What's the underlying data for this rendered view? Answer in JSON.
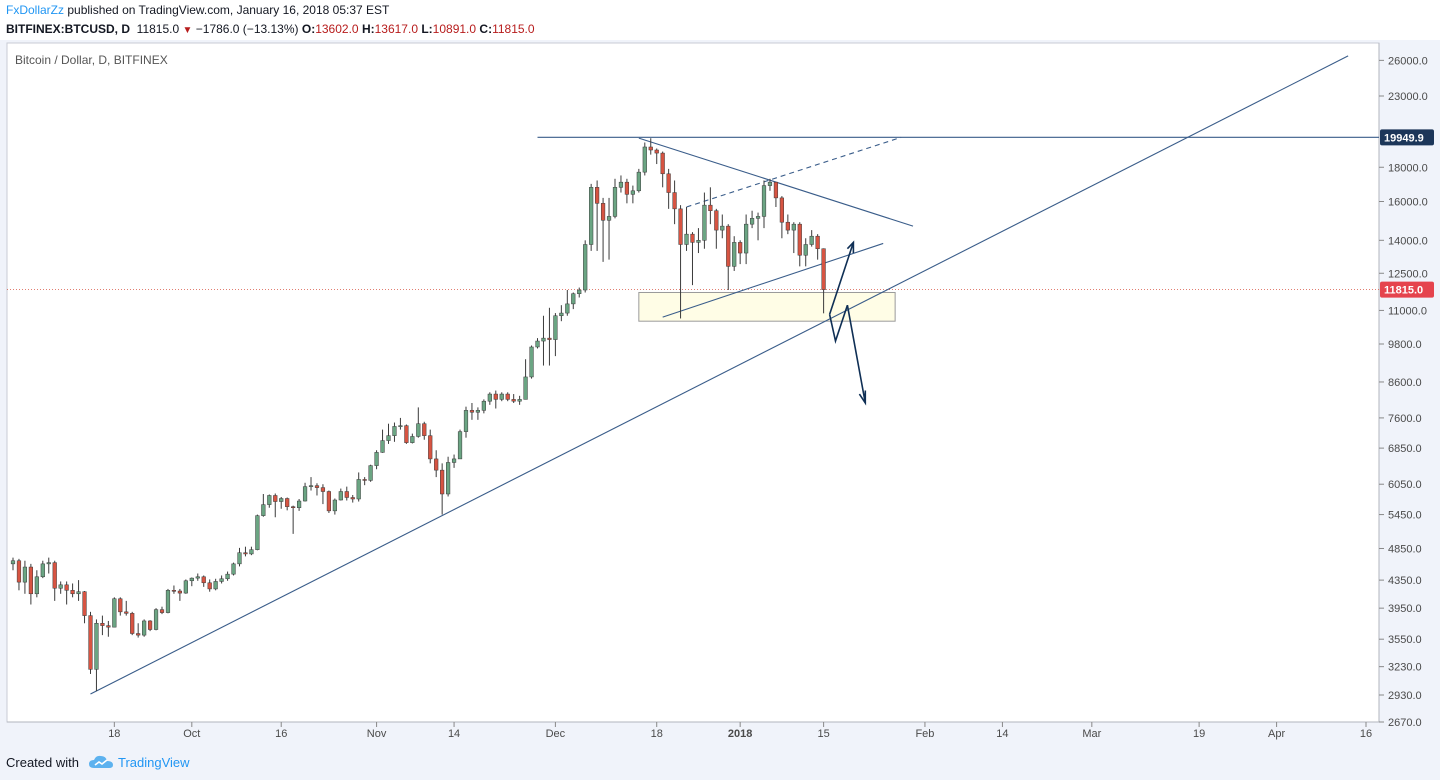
{
  "header": {
    "author": "FxDollarZz",
    "published_text": "published on TradingView.com, January 16, 2018 05:37 EST",
    "symbol": "BITFINEX:BTCUSD, D",
    "last": "11815.0",
    "change": "−1786.0 (−13.13%)",
    "o_label": "O:",
    "o_value": "13602.0",
    "h_label": "H:",
    "h_value": "13617.0",
    "l_label": "L:",
    "l_value": "10891.0",
    "c_label": "C:",
    "c_value": "11815.0"
  },
  "footer": {
    "created_with": "Created with",
    "brand": "TradingView"
  },
  "colors": {
    "up": "#6ba583",
    "down": "#d75442",
    "drawing": "#3a5d8a",
    "arrow": "#0f2f55",
    "highlight_fill": "#fffde6",
    "last_price_badge": "#e5434d",
    "level_badge": "#1c3659"
  },
  "chart_data": {
    "type": "candlestick",
    "title": "Bitcoin / Dollar, D, BITFINEX",
    "price_scale": "log",
    "ylim": [
      2670,
      27600
    ],
    "y_ticks": [
      "26000.0",
      "23000.0",
      "18000.0",
      "16000.0",
      "14000.0",
      "12500.0",
      "11000.0",
      "9800.0",
      "8600.0",
      "7600.0",
      "6850.0",
      "6050.0",
      "5450.0",
      "4850.0",
      "4350.0",
      "3950.0",
      "3550.0",
      "3230.0",
      "2930.0",
      "2670.0"
    ],
    "x_labels": [
      "18",
      "Oct",
      "16",
      "Nov",
      "14",
      "Dec",
      "18",
      "2018",
      "15",
      "Feb",
      "14",
      "Mar",
      "19",
      "Apr",
      "16"
    ],
    "x_range": [
      "2017-09-01",
      "2018-04-16"
    ],
    "last_price_label": "11815.0",
    "level_label": "19949.9",
    "candles": [
      {
        "date": "2017-09-01",
        "o": 4600,
        "h": 4700,
        "l": 4500,
        "c": 4650
      },
      {
        "date": "2017-09-02",
        "o": 4650,
        "h": 4680,
        "l": 4200,
        "c": 4320
      },
      {
        "date": "2017-09-03",
        "o": 4320,
        "h": 4650,
        "l": 4150,
        "c": 4550
      },
      {
        "date": "2017-09-04",
        "o": 4550,
        "h": 4600,
        "l": 4000,
        "c": 4150
      },
      {
        "date": "2017-09-05",
        "o": 4150,
        "h": 4500,
        "l": 4100,
        "c": 4400
      },
      {
        "date": "2017-09-06",
        "o": 4400,
        "h": 4650,
        "l": 4380,
        "c": 4600
      },
      {
        "date": "2017-09-07",
        "o": 4600,
        "h": 4700,
        "l": 4450,
        "c": 4620
      },
      {
        "date": "2017-09-08",
        "o": 4620,
        "h": 4650,
        "l": 4050,
        "c": 4230
      },
      {
        "date": "2017-09-09",
        "o": 4230,
        "h": 4330,
        "l": 4150,
        "c": 4280
      },
      {
        "date": "2017-09-10",
        "o": 4280,
        "h": 4330,
        "l": 4000,
        "c": 4200
      },
      {
        "date": "2017-09-11",
        "o": 4200,
        "h": 4300,
        "l": 4100,
        "c": 4150
      },
      {
        "date": "2017-09-12",
        "o": 4150,
        "h": 4350,
        "l": 4050,
        "c": 4180
      },
      {
        "date": "2017-09-13",
        "o": 4180,
        "h": 4190,
        "l": 3750,
        "c": 3850
      },
      {
        "date": "2017-09-14",
        "o": 3850,
        "h": 3900,
        "l": 3150,
        "c": 3200
      },
      {
        "date": "2017-09-15",
        "o": 3200,
        "h": 3800,
        "l": 2970,
        "c": 3750
      },
      {
        "date": "2017-09-16",
        "o": 3750,
        "h": 3850,
        "l": 3600,
        "c": 3720
      },
      {
        "date": "2017-09-17",
        "o": 3720,
        "h": 3780,
        "l": 3580,
        "c": 3700
      },
      {
        "date": "2017-09-18",
        "o": 3700,
        "h": 4100,
        "l": 3700,
        "c": 4080
      },
      {
        "date": "2017-09-19",
        "o": 4080,
        "h": 4100,
        "l": 3850,
        "c": 3900
      },
      {
        "date": "2017-09-20",
        "o": 3900,
        "h": 4050,
        "l": 3850,
        "c": 3880
      },
      {
        "date": "2017-09-21",
        "o": 3880,
        "h": 3900,
        "l": 3600,
        "c": 3620
      },
      {
        "date": "2017-09-22",
        "o": 3620,
        "h": 3750,
        "l": 3570,
        "c": 3600
      },
      {
        "date": "2017-09-23",
        "o": 3600,
        "h": 3800,
        "l": 3580,
        "c": 3780
      },
      {
        "date": "2017-09-24",
        "o": 3780,
        "h": 3790,
        "l": 3650,
        "c": 3670
      },
      {
        "date": "2017-09-25",
        "o": 3670,
        "h": 3950,
        "l": 3660,
        "c": 3930
      },
      {
        "date": "2017-09-26",
        "o": 3930,
        "h": 3970,
        "l": 3870,
        "c": 3890
      },
      {
        "date": "2017-09-27",
        "o": 3890,
        "h": 4220,
        "l": 3880,
        "c": 4200
      },
      {
        "date": "2017-09-28",
        "o": 4200,
        "h": 4270,
        "l": 4150,
        "c": 4190
      },
      {
        "date": "2017-09-29",
        "o": 4190,
        "h": 4220,
        "l": 4050,
        "c": 4160
      },
      {
        "date": "2017-09-30",
        "o": 4160,
        "h": 4360,
        "l": 4150,
        "c": 4340
      },
      {
        "date": "2017-10-01",
        "o": 4340,
        "h": 4390,
        "l": 4260,
        "c": 4380
      },
      {
        "date": "2017-10-02",
        "o": 4380,
        "h": 4450,
        "l": 4340,
        "c": 4400
      },
      {
        "date": "2017-10-03",
        "o": 4400,
        "h": 4420,
        "l": 4250,
        "c": 4310
      },
      {
        "date": "2017-10-04",
        "o": 4310,
        "h": 4360,
        "l": 4180,
        "c": 4220
      },
      {
        "date": "2017-10-05",
        "o": 4220,
        "h": 4370,
        "l": 4200,
        "c": 4330
      },
      {
        "date": "2017-10-06",
        "o": 4330,
        "h": 4420,
        "l": 4300,
        "c": 4370
      },
      {
        "date": "2017-10-07",
        "o": 4370,
        "h": 4480,
        "l": 4340,
        "c": 4440
      },
      {
        "date": "2017-10-08",
        "o": 4440,
        "h": 4620,
        "l": 4420,
        "c": 4600
      },
      {
        "date": "2017-10-09",
        "o": 4600,
        "h": 4860,
        "l": 4560,
        "c": 4780
      },
      {
        "date": "2017-10-10",
        "o": 4780,
        "h": 4880,
        "l": 4720,
        "c": 4760
      },
      {
        "date": "2017-10-11",
        "o": 4760,
        "h": 4880,
        "l": 4740,
        "c": 4830
      },
      {
        "date": "2017-10-12",
        "o": 4830,
        "h": 5450,
        "l": 4820,
        "c": 5430
      },
      {
        "date": "2017-10-13",
        "o": 5430,
        "h": 5850,
        "l": 5410,
        "c": 5640
      },
      {
        "date": "2017-10-14",
        "o": 5640,
        "h": 5840,
        "l": 5580,
        "c": 5820
      },
      {
        "date": "2017-10-15",
        "o": 5820,
        "h": 5860,
        "l": 5400,
        "c": 5700
      },
      {
        "date": "2017-10-16",
        "o": 5700,
        "h": 5790,
        "l": 5560,
        "c": 5760
      },
      {
        "date": "2017-10-17",
        "o": 5760,
        "h": 5780,
        "l": 5530,
        "c": 5600
      },
      {
        "date": "2017-10-18",
        "o": 5600,
        "h": 5620,
        "l": 5100,
        "c": 5580
      },
      {
        "date": "2017-10-19",
        "o": 5580,
        "h": 5750,
        "l": 5520,
        "c": 5710
      },
      {
        "date": "2017-10-20",
        "o": 5710,
        "h": 6080,
        "l": 5700,
        "c": 6000
      },
      {
        "date": "2017-10-21",
        "o": 6000,
        "h": 6200,
        "l": 5920,
        "c": 6020
      },
      {
        "date": "2017-10-22",
        "o": 6020,
        "h": 6070,
        "l": 5820,
        "c": 5980
      },
      {
        "date": "2017-10-23",
        "o": 5980,
        "h": 6050,
        "l": 5650,
        "c": 5900
      },
      {
        "date": "2017-10-24",
        "o": 5900,
        "h": 5920,
        "l": 5480,
        "c": 5520
      },
      {
        "date": "2017-10-25",
        "o": 5520,
        "h": 5760,
        "l": 5450,
        "c": 5730
      },
      {
        "date": "2017-10-26",
        "o": 5730,
        "h": 5960,
        "l": 5720,
        "c": 5900
      },
      {
        "date": "2017-10-27",
        "o": 5900,
        "h": 6000,
        "l": 5720,
        "c": 5780
      },
      {
        "date": "2017-10-28",
        "o": 5780,
        "h": 5830,
        "l": 5680,
        "c": 5750
      },
      {
        "date": "2017-10-29",
        "o": 5750,
        "h": 6300,
        "l": 5700,
        "c": 6150
      },
      {
        "date": "2017-10-30",
        "o": 6150,
        "h": 6200,
        "l": 6030,
        "c": 6130
      },
      {
        "date": "2017-10-31",
        "o": 6130,
        "h": 6470,
        "l": 6100,
        "c": 6450
      },
      {
        "date": "2017-11-01",
        "o": 6450,
        "h": 6800,
        "l": 6370,
        "c": 6750
      },
      {
        "date": "2017-11-02",
        "o": 6750,
        "h": 7300,
        "l": 6740,
        "c": 7030
      },
      {
        "date": "2017-11-03",
        "o": 7030,
        "h": 7450,
        "l": 6950,
        "c": 7150
      },
      {
        "date": "2017-11-04",
        "o": 7150,
        "h": 7480,
        "l": 7000,
        "c": 7380
      },
      {
        "date": "2017-11-05",
        "o": 7380,
        "h": 7600,
        "l": 7300,
        "c": 7400
      },
      {
        "date": "2017-11-06",
        "o": 7400,
        "h": 7430,
        "l": 6950,
        "c": 6980
      },
      {
        "date": "2017-11-07",
        "o": 6980,
        "h": 7200,
        "l": 6960,
        "c": 7130
      },
      {
        "date": "2017-11-08",
        "o": 7130,
        "h": 7880,
        "l": 7100,
        "c": 7450
      },
      {
        "date": "2017-11-09",
        "o": 7450,
        "h": 7500,
        "l": 7050,
        "c": 7150
      },
      {
        "date": "2017-11-10",
        "o": 7150,
        "h": 7300,
        "l": 6500,
        "c": 6600
      },
      {
        "date": "2017-11-11",
        "o": 6600,
        "h": 6800,
        "l": 6200,
        "c": 6350
      },
      {
        "date": "2017-11-12",
        "o": 6350,
        "h": 6500,
        "l": 5450,
        "c": 5850
      },
      {
        "date": "2017-11-13",
        "o": 5850,
        "h": 6650,
        "l": 5800,
        "c": 6520
      },
      {
        "date": "2017-11-14",
        "o": 6520,
        "h": 6700,
        "l": 6400,
        "c": 6600
      },
      {
        "date": "2017-11-15",
        "o": 6600,
        "h": 7300,
        "l": 6600,
        "c": 7250
      },
      {
        "date": "2017-11-16",
        "o": 7250,
        "h": 7900,
        "l": 7100,
        "c": 7800
      },
      {
        "date": "2017-11-17",
        "o": 7800,
        "h": 8000,
        "l": 7550,
        "c": 7750
      },
      {
        "date": "2017-11-18",
        "o": 7750,
        "h": 7880,
        "l": 7550,
        "c": 7800
      },
      {
        "date": "2017-11-19",
        "o": 7800,
        "h": 8100,
        "l": 7720,
        "c": 8050
      },
      {
        "date": "2017-11-20",
        "o": 8050,
        "h": 8300,
        "l": 7950,
        "c": 8250
      },
      {
        "date": "2017-11-21",
        "o": 8250,
        "h": 8350,
        "l": 7850,
        "c": 8100
      },
      {
        "date": "2017-11-22",
        "o": 8100,
        "h": 8300,
        "l": 8050,
        "c": 8250
      },
      {
        "date": "2017-11-23",
        "o": 8250,
        "h": 8300,
        "l": 8050,
        "c": 8100
      },
      {
        "date": "2017-11-24",
        "o": 8100,
        "h": 8250,
        "l": 8000,
        "c": 8050
      },
      {
        "date": "2017-11-25",
        "o": 8050,
        "h": 8200,
        "l": 7950,
        "c": 8100
      },
      {
        "date": "2017-11-26",
        "o": 8100,
        "h": 9300,
        "l": 8100,
        "c": 8750
      },
      {
        "date": "2017-11-27",
        "o": 8750,
        "h": 9750,
        "l": 8700,
        "c": 9700
      },
      {
        "date": "2017-11-28",
        "o": 9700,
        "h": 10000,
        "l": 9650,
        "c": 9900
      },
      {
        "date": "2017-11-29",
        "o": 9900,
        "h": 10800,
        "l": 9100,
        "c": 10000
      },
      {
        "date": "2017-11-30",
        "o": 10000,
        "h": 11100,
        "l": 9100,
        "c": 9950
      },
      {
        "date": "2017-12-01",
        "o": 9950,
        "h": 10900,
        "l": 9400,
        "c": 10800
      },
      {
        "date": "2017-12-02",
        "o": 10800,
        "h": 11200,
        "l": 10600,
        "c": 10900
      },
      {
        "date": "2017-12-03",
        "o": 10900,
        "h": 11800,
        "l": 10800,
        "c": 11250
      },
      {
        "date": "2017-12-04",
        "o": 11250,
        "h": 11700,
        "l": 11050,
        "c": 11650
      },
      {
        "date": "2017-12-05",
        "o": 11650,
        "h": 11900,
        "l": 11500,
        "c": 11800
      },
      {
        "date": "2017-12-06",
        "o": 11800,
        "h": 14000,
        "l": 11700,
        "c": 13800
      },
      {
        "date": "2017-12-07",
        "o": 13800,
        "h": 17000,
        "l": 13500,
        "c": 16800
      },
      {
        "date": "2017-12-08",
        "o": 16800,
        "h": 17200,
        "l": 13500,
        "c": 15900
      },
      {
        "date": "2017-12-09",
        "o": 15900,
        "h": 16200,
        "l": 13000,
        "c": 15000
      },
      {
        "date": "2017-12-10",
        "o": 15000,
        "h": 16200,
        "l": 13100,
        "c": 15200
      },
      {
        "date": "2017-12-11",
        "o": 15200,
        "h": 17300,
        "l": 15100,
        "c": 16800
      },
      {
        "date": "2017-12-12",
        "o": 16800,
        "h": 17500,
        "l": 16500,
        "c": 17100
      },
      {
        "date": "2017-12-13",
        "o": 17100,
        "h": 17300,
        "l": 15900,
        "c": 16400
      },
      {
        "date": "2017-12-14",
        "o": 16400,
        "h": 16900,
        "l": 15900,
        "c": 16600
      },
      {
        "date": "2017-12-15",
        "o": 16600,
        "h": 17900,
        "l": 16500,
        "c": 17700
      },
      {
        "date": "2017-12-16",
        "o": 17700,
        "h": 19600,
        "l": 17500,
        "c": 19300
      },
      {
        "date": "2017-12-17",
        "o": 19300,
        "h": 19891,
        "l": 18800,
        "c": 19100
      },
      {
        "date": "2017-12-18",
        "o": 19100,
        "h": 19200,
        "l": 18200,
        "c": 18900
      },
      {
        "date": "2017-12-19",
        "o": 18900,
        "h": 19000,
        "l": 16800,
        "c": 17600
      },
      {
        "date": "2017-12-20",
        "o": 17600,
        "h": 17900,
        "l": 15600,
        "c": 16500
      },
      {
        "date": "2017-12-21",
        "o": 16500,
        "h": 17200,
        "l": 14800,
        "c": 15600
      },
      {
        "date": "2017-12-22",
        "o": 15600,
        "h": 15800,
        "l": 10700,
        "c": 13800
      },
      {
        "date": "2017-12-23",
        "o": 13800,
        "h": 15700,
        "l": 13500,
        "c": 14300
      },
      {
        "date": "2017-12-24",
        "o": 14300,
        "h": 14400,
        "l": 12000,
        "c": 13900
      },
      {
        "date": "2017-12-25",
        "o": 13900,
        "h": 14600,
        "l": 13400,
        "c": 14000
      },
      {
        "date": "2017-12-26",
        "o": 14000,
        "h": 16500,
        "l": 13600,
        "c": 15800
      },
      {
        "date": "2017-12-27",
        "o": 15800,
        "h": 16800,
        "l": 14800,
        "c": 15500
      },
      {
        "date": "2017-12-28",
        "o": 15500,
        "h": 15600,
        "l": 13600,
        "c": 14500
      },
      {
        "date": "2017-12-29",
        "o": 14500,
        "h": 15300,
        "l": 14100,
        "c": 14700
      },
      {
        "date": "2017-12-30",
        "o": 14700,
        "h": 14800,
        "l": 11800,
        "c": 12800
      },
      {
        "date": "2017-12-31",
        "o": 12800,
        "h": 14200,
        "l": 12600,
        "c": 13900
      },
      {
        "date": "2018-01-01",
        "o": 13900,
        "h": 14000,
        "l": 12900,
        "c": 13400
      },
      {
        "date": "2018-01-02",
        "o": 13400,
        "h": 15300,
        "l": 12900,
        "c": 14800
      },
      {
        "date": "2018-01-03",
        "o": 14800,
        "h": 15500,
        "l": 14600,
        "c": 15100
      },
      {
        "date": "2018-01-04",
        "o": 15100,
        "h": 15400,
        "l": 14000,
        "c": 15200
      },
      {
        "date": "2018-01-05",
        "o": 15200,
        "h": 17200,
        "l": 14600,
        "c": 16900
      },
      {
        "date": "2018-01-06",
        "o": 16900,
        "h": 17300,
        "l": 16600,
        "c": 17100
      },
      {
        "date": "2018-01-07",
        "o": 17100,
        "h": 17100,
        "l": 15700,
        "c": 16200
      },
      {
        "date": "2018-01-08",
        "o": 16200,
        "h": 16300,
        "l": 14100,
        "c": 14900
      },
      {
        "date": "2018-01-09",
        "o": 14900,
        "h": 15300,
        "l": 14300,
        "c": 14500
      },
      {
        "date": "2018-01-10",
        "o": 14500,
        "h": 14900,
        "l": 13400,
        "c": 14800
      },
      {
        "date": "2018-01-11",
        "o": 14800,
        "h": 14900,
        "l": 12800,
        "c": 13300
      },
      {
        "date": "2018-01-12",
        "o": 13300,
        "h": 14100,
        "l": 12800,
        "c": 13800
      },
      {
        "date": "2018-01-13",
        "o": 13800,
        "h": 14500,
        "l": 13700,
        "c": 14200
      },
      {
        "date": "2018-01-14",
        "o": 14200,
        "h": 14300,
        "l": 13100,
        "c": 13600
      },
      {
        "date": "2018-01-15",
        "o": 13602,
        "h": 13617,
        "l": 10891,
        "c": 11815
      }
    ]
  }
}
